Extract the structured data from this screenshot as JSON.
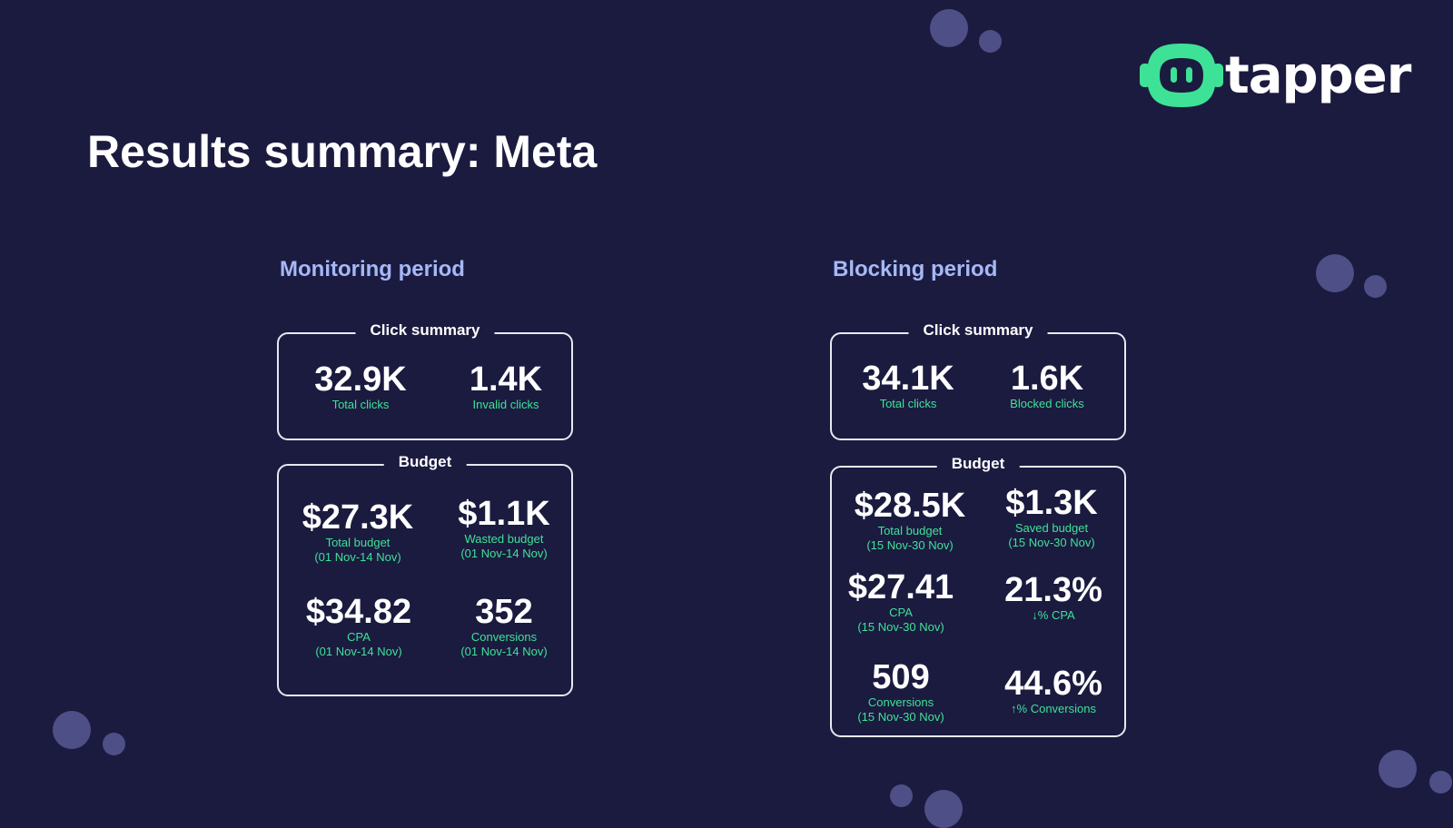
{
  "brand": {
    "name": "tapper",
    "accent": "#3ee296"
  },
  "page": {
    "title": "Results summary: Meta"
  },
  "monitoring": {
    "heading": "Monitoring period",
    "click_summary": {
      "title": "Click summary",
      "stats": [
        {
          "value": "32.9K",
          "label": "Total clicks"
        },
        {
          "value": "1.4K",
          "label": "Invalid clicks"
        }
      ]
    },
    "budget": {
      "title": "Budget",
      "stats": [
        {
          "value": "$27.3K",
          "label": "Total budget",
          "sub": "(01 Nov-14 Nov)"
        },
        {
          "value": "$1.1K",
          "label": "Wasted budget",
          "sub": "(01 Nov-14 Nov)"
        },
        {
          "value": "$34.82",
          "label": "CPA",
          "sub": "(01 Nov-14 Nov)"
        },
        {
          "value": "352",
          "label": "Conversions",
          "sub": "(01 Nov-14 Nov)"
        }
      ]
    }
  },
  "blocking": {
    "heading": "Blocking period",
    "click_summary": {
      "title": "Click summary",
      "stats": [
        {
          "value": "34.1K",
          "label": "Total clicks"
        },
        {
          "value": "1.6K",
          "label": "Blocked clicks"
        }
      ]
    },
    "budget": {
      "title": "Budget",
      "stats": [
        {
          "value": "$28.5K",
          "label": "Total budget",
          "sub": "(15 Nov-30 Nov)"
        },
        {
          "value": "$1.3K",
          "label": "Saved budget",
          "sub": "(15 Nov-30 Nov)"
        },
        {
          "value": "$27.41",
          "label": "CPA",
          "sub": "(15 Nov-30 Nov)"
        },
        {
          "value": "21.3%",
          "label": "↓% CPA"
        },
        {
          "value": "509",
          "label": "Conversions",
          "sub": "(15 Nov-30 Nov)"
        },
        {
          "value": "44.6%",
          "label": "↑% Conversions"
        }
      ]
    }
  }
}
